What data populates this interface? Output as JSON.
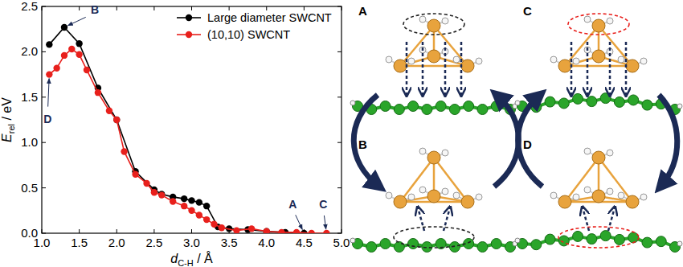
{
  "chart_data": {
    "type": "line",
    "x_label": {
      "main": "d",
      "sub": "C-H",
      "unit": " / Å"
    },
    "y_label": {
      "main": "E",
      "sub": "rel",
      "unit": " / eV"
    },
    "xlim": [
      1.0,
      5.0
    ],
    "ylim": [
      0.0,
      2.5
    ],
    "xticks": [
      {
        "value": 1.0,
        "label": "1.0"
      },
      1.5,
      {
        "value": 2.0,
        "label": "2.0"
      },
      2.5,
      {
        "value": 3.0,
        "label": "3.0"
      },
      3.5,
      {
        "value": 4.0,
        "label": "4.0"
      },
      4.5,
      {
        "value": 5.0,
        "label": "5.0"
      }
    ],
    "yticks": [
      {
        "value": 0.0,
        "label": "0.0"
      },
      0.5,
      {
        "value": 1.0,
        "label": "1.0"
      },
      1.5,
      {
        "value": 2.0,
        "label": "2.0"
      },
      2.5
    ],
    "grid": false,
    "legend": "upper right",
    "marker": "circle",
    "line_style": "solid",
    "series": [
      {
        "name": "Large diameter SWCNT",
        "color": "#000000",
        "x": [
          1.1,
          1.3,
          1.5,
          1.75,
          2.0,
          2.25,
          2.5,
          2.6,
          2.75,
          2.9,
          3.0,
          3.1,
          3.2,
          3.35,
          3.5,
          3.75,
          4.0,
          4.25,
          4.5
        ],
        "values": [
          2.08,
          2.27,
          2.09,
          1.6,
          1.25,
          0.68,
          0.48,
          0.43,
          0.4,
          0.38,
          0.36,
          0.34,
          0.3,
          0.07,
          0.05,
          0.04,
          0.02,
          0.01,
          0.0
        ]
      },
      {
        "name": "(10,10) SWCNT",
        "color": "#e8201c",
        "x": [
          1.1,
          1.2,
          1.3,
          1.4,
          1.5,
          1.6,
          1.75,
          1.9,
          2.0,
          2.1,
          2.25,
          2.4,
          2.5,
          2.6,
          2.75,
          2.9,
          3.0,
          3.1,
          3.2,
          3.3,
          3.4,
          3.6,
          3.8,
          4.0,
          4.2,
          4.4,
          4.6,
          4.8
        ],
        "values": [
          1.75,
          1.82,
          1.96,
          2.03,
          1.97,
          1.8,
          1.55,
          1.35,
          1.25,
          0.9,
          0.65,
          0.55,
          0.45,
          0.42,
          0.35,
          0.3,
          0.25,
          0.2,
          0.15,
          0.1,
          0.06,
          0.03,
          0.05,
          0.02,
          0.01,
          0.01,
          0.0,
          0.0
        ]
      }
    ],
    "annotations": [
      {
        "text": "B",
        "x": 1.3,
        "y": 2.27
      },
      {
        "text": "D",
        "x": 1.1,
        "y": 1.75
      },
      {
        "text": "A",
        "x": 4.5,
        "y": 0.0
      },
      {
        "text": "C",
        "x": 4.8,
        "y": 0.0
      }
    ]
  },
  "panels": [
    {
      "label": "A"
    },
    {
      "label": "B"
    },
    {
      "label": "C"
    },
    {
      "label": "D"
    }
  ]
}
